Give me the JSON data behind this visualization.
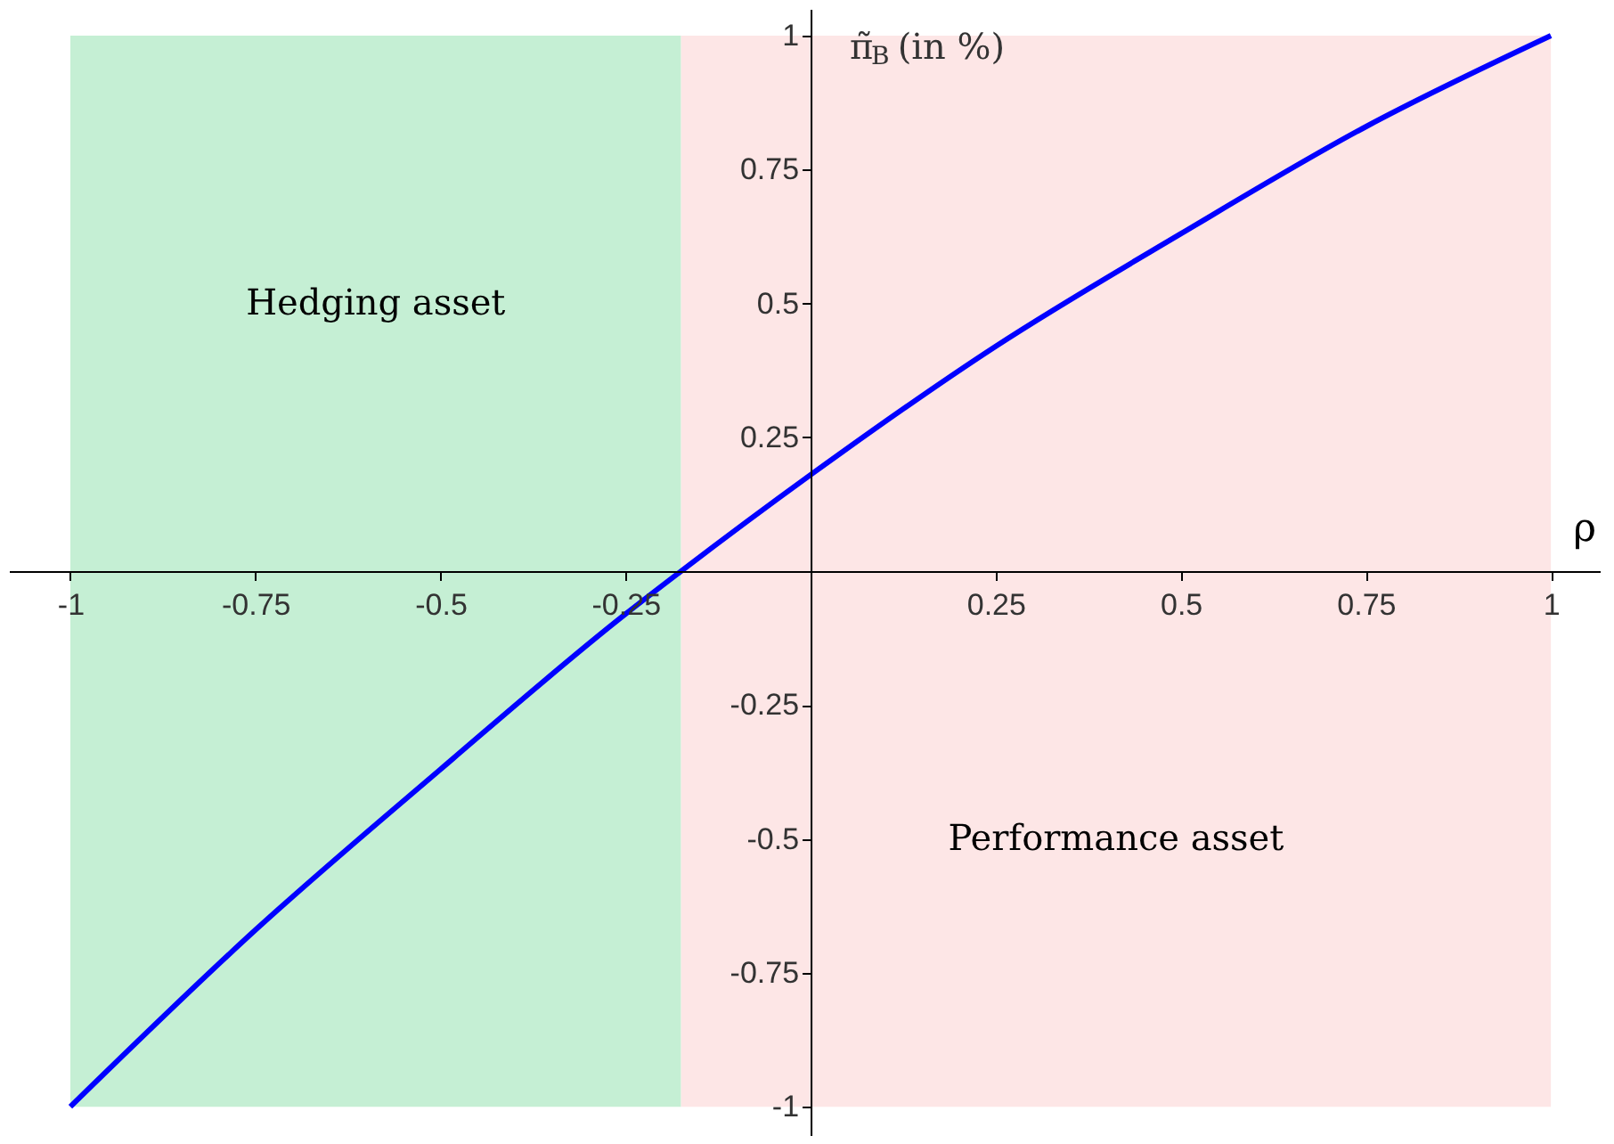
{
  "chart_data": {
    "type": "line",
    "xlabel": "ρ",
    "ylabel": "π̃$_{B}$ (in %)",
    "x": [
      -1,
      -0.75,
      -0.5,
      -0.25,
      -0.175,
      0,
      0.25,
      0.5,
      0.75,
      1
    ],
    "series": [
      {
        "color": "#0000ff",
        "values": [
          -1,
          -0.67,
          -0.37,
          -0.08,
          0,
          0.18,
          0.42,
          0.63,
          0.83,
          1
        ]
      }
    ],
    "xlim": [
      -1.083,
      1.066
    ],
    "ylim": [
      -1.053,
      1.05
    ],
    "xticks": [
      -1,
      -0.75,
      -0.5,
      -0.25,
      0.25,
      0.5,
      0.75,
      1
    ],
    "yticks": [
      -1,
      -0.75,
      -0.5,
      -0.25,
      0.25,
      0.5,
      0.75,
      1
    ],
    "bands": [
      {
        "axis": "x",
        "from": -1,
        "to": -0.175,
        "label": "Hedging asset",
        "color": "#c5efd4"
      },
      {
        "axis": "x",
        "from": -0.175,
        "to": 1,
        "label": "Performance asset",
        "color": "#fde6e6"
      }
    ],
    "grid": false,
    "marker": "none",
    "line_style": "solid"
  }
}
